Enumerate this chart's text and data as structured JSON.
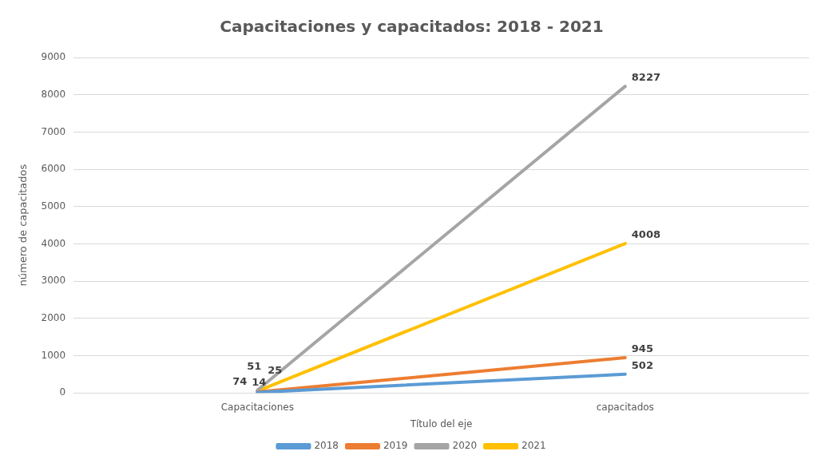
{
  "chart_data": {
    "type": "line",
    "title": "Capacitaciones y capacitados: 2018 - 2021",
    "xlabel": "Título del eje",
    "ylabel": "número de capacitados",
    "categories": [
      "Capacitaciones",
      "capacitados"
    ],
    "series": [
      {
        "name": "2018",
        "color": "#5b9bd5",
        "values": [
          14,
          502
        ]
      },
      {
        "name": "2019",
        "color": "#ed7d31",
        "values": [
          25,
          945
        ]
      },
      {
        "name": "2020",
        "color": "#a5a5a5",
        "values": [
          74,
          8227
        ]
      },
      {
        "name": "2021",
        "color": "#ffc000",
        "values": [
          51,
          4008
        ]
      }
    ],
    "ylim": [
      0,
      9000
    ],
    "yticks": [
      0,
      1000,
      2000,
      3000,
      4000,
      5000,
      6000,
      7000,
      8000,
      9000
    ],
    "grid": "y",
    "legend": "bottom",
    "data_labels": true,
    "marker": "none",
    "line_style": "solid"
  }
}
